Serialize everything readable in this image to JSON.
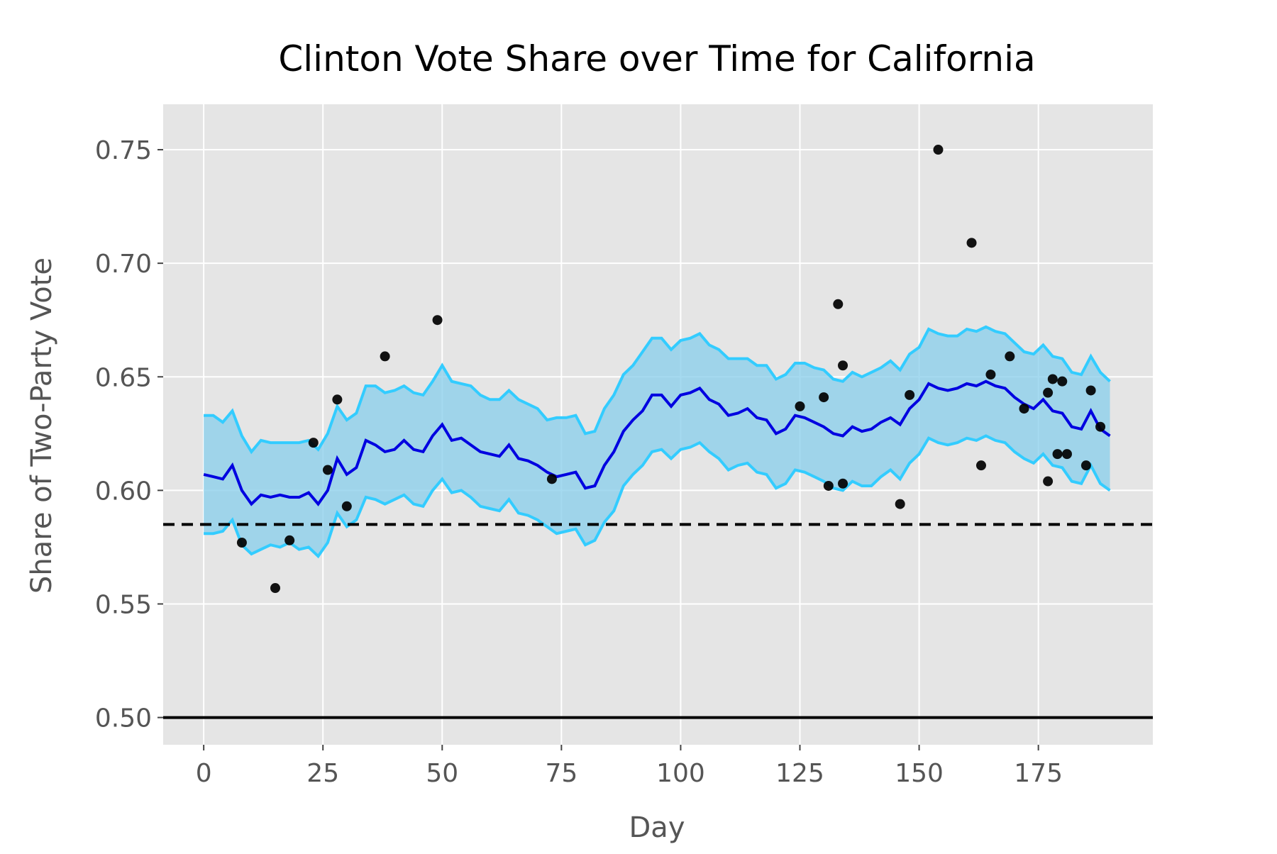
{
  "chart_data": {
    "type": "line",
    "title": "Clinton Vote Share over Time for California",
    "xlabel": "Day",
    "ylabel": "Share of Two-Party Vote",
    "xlim": [
      -8.5,
      199
    ],
    "ylim": [
      0.488,
      0.77
    ],
    "x_ticks": [
      0,
      25,
      50,
      75,
      100,
      125,
      150,
      175
    ],
    "y_ticks": [
      0.5,
      0.55,
      0.6,
      0.65,
      0.7,
      0.75
    ],
    "y_tick_labels": [
      "0.50",
      "0.55",
      "0.60",
      "0.65",
      "0.70",
      "0.75"
    ],
    "grid": true,
    "colors": {
      "panel": "#e5e5e5",
      "grid": "#ffffff",
      "band_fill": "#87ceeb",
      "band_edge": "#33ccff",
      "mean_line": "#0000e0",
      "poll_points": "#000000",
      "reference_lines": "#000000"
    },
    "series": [
      {
        "role": "mean",
        "x": [
          0,
          2,
          4,
          6,
          8,
          10,
          12,
          14,
          16,
          18,
          20,
          22,
          24,
          26,
          28,
          30,
          32,
          34,
          36,
          38,
          40,
          42,
          44,
          46,
          48,
          50,
          52,
          54,
          56,
          58,
          60,
          62,
          64,
          66,
          68,
          70,
          72,
          74,
          76,
          78,
          80,
          82,
          84,
          86,
          88,
          90,
          92,
          94,
          96,
          98,
          100,
          102,
          104,
          106,
          108,
          110,
          112,
          114,
          116,
          118,
          120,
          122,
          124,
          126,
          128,
          130,
          132,
          134,
          136,
          138,
          140,
          142,
          144,
          146,
          148,
          150,
          152,
          154,
          156,
          158,
          160,
          162,
          164,
          166,
          168,
          170,
          172,
          174,
          176,
          178,
          180,
          182,
          184,
          186,
          188,
          190
        ],
        "y": [
          0.607,
          0.606,
          0.605,
          0.611,
          0.6,
          0.594,
          0.598,
          0.597,
          0.598,
          0.597,
          0.597,
          0.599,
          0.594,
          0.6,
          0.614,
          0.607,
          0.61,
          0.622,
          0.62,
          0.617,
          0.618,
          0.622,
          0.618,
          0.617,
          0.624,
          0.629,
          0.622,
          0.623,
          0.62,
          0.617,
          0.616,
          0.615,
          0.62,
          0.614,
          0.613,
          0.611,
          0.608,
          0.606,
          0.607,
          0.608,
          0.601,
          0.602,
          0.611,
          0.617,
          0.626,
          0.631,
          0.635,
          0.642,
          0.642,
          0.637,
          0.642,
          0.643,
          0.645,
          0.64,
          0.638,
          0.633,
          0.634,
          0.636,
          0.632,
          0.631,
          0.625,
          0.627,
          0.633,
          0.632,
          0.63,
          0.628,
          0.625,
          0.624,
          0.628,
          0.626,
          0.627,
          0.63,
          0.632,
          0.629,
          0.636,
          0.64,
          0.647,
          0.645,
          0.644,
          0.645,
          0.647,
          0.646,
          0.648,
          0.646,
          0.645,
          0.641,
          0.638,
          0.636,
          0.64,
          0.635,
          0.634,
          0.628,
          0.627,
          0.635,
          0.627,
          0.624
        ]
      },
      {
        "role": "upper_bound",
        "x": [
          0,
          2,
          4,
          6,
          8,
          10,
          12,
          14,
          16,
          18,
          20,
          22,
          24,
          26,
          28,
          30,
          32,
          34,
          36,
          38,
          40,
          42,
          44,
          46,
          48,
          50,
          52,
          54,
          56,
          58,
          60,
          62,
          64,
          66,
          68,
          70,
          72,
          74,
          76,
          78,
          80,
          82,
          84,
          86,
          88,
          90,
          92,
          94,
          96,
          98,
          100,
          102,
          104,
          106,
          108,
          110,
          112,
          114,
          116,
          118,
          120,
          122,
          124,
          126,
          128,
          130,
          132,
          134,
          136,
          138,
          140,
          142,
          144,
          146,
          148,
          150,
          152,
          154,
          156,
          158,
          160,
          162,
          164,
          166,
          168,
          170,
          172,
          174,
          176,
          178,
          180,
          182,
          184,
          186,
          188,
          190
        ],
        "y": [
          0.633,
          0.633,
          0.63,
          0.635,
          0.624,
          0.617,
          0.622,
          0.621,
          0.621,
          0.621,
          0.621,
          0.622,
          0.618,
          0.625,
          0.637,
          0.631,
          0.634,
          0.646,
          0.646,
          0.643,
          0.644,
          0.646,
          0.643,
          0.642,
          0.648,
          0.655,
          0.648,
          0.647,
          0.646,
          0.642,
          0.64,
          0.64,
          0.644,
          0.64,
          0.638,
          0.636,
          0.631,
          0.632,
          0.632,
          0.633,
          0.625,
          0.626,
          0.636,
          0.642,
          0.651,
          0.655,
          0.661,
          0.667,
          0.667,
          0.662,
          0.666,
          0.667,
          0.669,
          0.664,
          0.662,
          0.658,
          0.658,
          0.658,
          0.655,
          0.655,
          0.649,
          0.651,
          0.656,
          0.656,
          0.654,
          0.653,
          0.649,
          0.648,
          0.652,
          0.65,
          0.652,
          0.654,
          0.657,
          0.653,
          0.66,
          0.663,
          0.671,
          0.669,
          0.668,
          0.668,
          0.671,
          0.67,
          0.672,
          0.67,
          0.669,
          0.665,
          0.661,
          0.66,
          0.664,
          0.659,
          0.658,
          0.652,
          0.651,
          0.659,
          0.652,
          0.648
        ]
      },
      {
        "role": "lower_bound",
        "x": [
          0,
          2,
          4,
          6,
          8,
          10,
          12,
          14,
          16,
          18,
          20,
          22,
          24,
          26,
          28,
          30,
          32,
          34,
          36,
          38,
          40,
          42,
          44,
          46,
          48,
          50,
          52,
          54,
          56,
          58,
          60,
          62,
          64,
          66,
          68,
          70,
          72,
          74,
          76,
          78,
          80,
          82,
          84,
          86,
          88,
          90,
          92,
          94,
          96,
          98,
          100,
          102,
          104,
          106,
          108,
          110,
          112,
          114,
          116,
          118,
          120,
          122,
          124,
          126,
          128,
          130,
          132,
          134,
          136,
          138,
          140,
          142,
          144,
          146,
          148,
          150,
          152,
          154,
          156,
          158,
          160,
          162,
          164,
          166,
          168,
          170,
          172,
          174,
          176,
          178,
          180,
          182,
          184,
          186,
          188,
          190
        ],
        "y": [
          0.581,
          0.581,
          0.582,
          0.587,
          0.576,
          0.572,
          0.574,
          0.576,
          0.575,
          0.577,
          0.574,
          0.575,
          0.571,
          0.577,
          0.59,
          0.584,
          0.587,
          0.597,
          0.596,
          0.594,
          0.596,
          0.598,
          0.594,
          0.593,
          0.6,
          0.605,
          0.599,
          0.6,
          0.597,
          0.593,
          0.592,
          0.591,
          0.596,
          0.59,
          0.589,
          0.587,
          0.584,
          0.581,
          0.582,
          0.583,
          0.576,
          0.578,
          0.586,
          0.591,
          0.602,
          0.607,
          0.611,
          0.617,
          0.618,
          0.614,
          0.618,
          0.619,
          0.621,
          0.617,
          0.614,
          0.609,
          0.611,
          0.612,
          0.608,
          0.607,
          0.601,
          0.603,
          0.609,
          0.608,
          0.606,
          0.604,
          0.601,
          0.6,
          0.604,
          0.602,
          0.602,
          0.606,
          0.609,
          0.605,
          0.612,
          0.616,
          0.623,
          0.621,
          0.62,
          0.621,
          0.623,
          0.622,
          0.624,
          0.622,
          0.621,
          0.617,
          0.614,
          0.612,
          0.616,
          0.611,
          0.61,
          0.604,
          0.603,
          0.611,
          0.603,
          0.6
        ]
      },
      {
        "role": "polls",
        "x": [
          8,
          15,
          18,
          23,
          26,
          28,
          30,
          38,
          49,
          73,
          125,
          130,
          131,
          133,
          134,
          134,
          146,
          148,
          154,
          161,
          163,
          165,
          169,
          172,
          177,
          177,
          178,
          179,
          180,
          181,
          185,
          186,
          188
        ],
        "y": [
          0.577,
          0.557,
          0.578,
          0.621,
          0.609,
          0.64,
          0.593,
          0.659,
          0.675,
          0.605,
          0.637,
          0.641,
          0.602,
          0.682,
          0.655,
          0.603,
          0.594,
          0.642,
          0.75,
          0.709,
          0.611,
          0.651,
          0.659,
          0.636,
          0.643,
          0.604,
          0.649,
          0.616,
          0.648,
          0.616,
          0.611,
          0.644,
          0.628
        ]
      }
    ],
    "reference_lines": [
      {
        "y": 0.585,
        "style": "dashed"
      },
      {
        "y": 0.5,
        "style": "solid"
      }
    ]
  }
}
